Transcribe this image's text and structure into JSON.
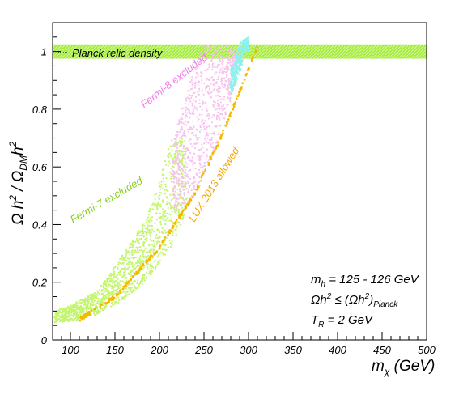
{
  "chart_data": {
    "type": "scatter",
    "title": "",
    "xlabel": "m_χ (GeV)",
    "ylabel": "Ω h² / Ω_DM h²",
    "xlim": [
      80,
      500
    ],
    "ylim": [
      0,
      1.1
    ],
    "x_ticks": [
      100,
      150,
      200,
      250,
      300,
      350,
      400,
      450,
      500
    ],
    "y_ticks": [
      0,
      0.2,
      0.4,
      0.6,
      0.8,
      1
    ],
    "x_tick_labels": [
      "100",
      "150",
      "200",
      "250",
      "300",
      "350",
      "400",
      "450",
      "500"
    ],
    "y_tick_labels": [
      "0",
      "0.2",
      "0.4",
      "0.6",
      "0.8",
      "1"
    ],
    "grid": false,
    "band": {
      "name": "Planck relic density",
      "y_range": [
        0.975,
        1.025
      ],
      "x_range": [
        80,
        500
      ],
      "color": "#a6ec3e"
    },
    "series": [
      {
        "name": "Fermi-7 excluded",
        "color": "#c4f56f",
        "lower_edge": [
          [
            82,
            0.06
          ],
          [
            100,
            0.065
          ],
          [
            120,
            0.075
          ],
          [
            150,
            0.12
          ],
          [
            180,
            0.19
          ],
          [
            200,
            0.26
          ],
          [
            215,
            0.33
          ],
          [
            230,
            0.45
          ]
        ],
        "upper_edge": [
          [
            82,
            0.1
          ],
          [
            100,
            0.12
          ],
          [
            130,
            0.17
          ],
          [
            160,
            0.3
          ],
          [
            185,
            0.42
          ],
          [
            200,
            0.55
          ],
          [
            210,
            0.67
          ],
          [
            215,
            0.7
          ]
        ]
      },
      {
        "name": "Fermi-8 excluded",
        "color": "#f6c2ee",
        "lower_edge": [
          [
            230,
            0.45
          ],
          [
            250,
            0.56
          ],
          [
            270,
            0.73
          ],
          [
            280,
            0.83
          ],
          [
            290,
            0.95
          ]
        ],
        "upper_edge": [
          [
            215,
            0.7
          ],
          [
            230,
            0.85
          ],
          [
            240,
            0.95
          ],
          [
            250,
            1.02
          ],
          [
            275,
            1.02
          ],
          [
            285,
            1.0
          ]
        ]
      },
      {
        "name": "LUX 2013 allowed",
        "color": "#f5b800",
        "curve": [
          [
            110,
            0.07
          ],
          [
            150,
            0.15
          ],
          [
            200,
            0.32
          ],
          [
            240,
            0.51
          ],
          [
            270,
            0.71
          ],
          [
            290,
            0.86
          ],
          [
            305,
            0.98
          ],
          [
            312,
            1.03
          ]
        ]
      },
      {
        "name": "Cyan",
        "color": "#8af2ec",
        "lower_edge": [
          [
            280,
            0.85
          ],
          [
            290,
            0.92
          ],
          [
            296,
            1.0
          ]
        ],
        "upper_edge": [
          [
            283,
            0.95
          ],
          [
            290,
            1.03
          ],
          [
            300,
            1.05
          ]
        ]
      }
    ],
    "annotations": [
      {
        "text": "Fermi-8 excluded",
        "color": "#ef7ee8"
      },
      {
        "text": "Fermi-7 excluded",
        "color": "#86cf20"
      },
      {
        "text": "LUX 2013 allowed",
        "color": "#f0a800"
      }
    ],
    "legend_text": [
      "m_h = 125 - 126 GeV",
      "Ωh² ≤ (Ωh²)_Planck",
      "T_R = 2 GeV"
    ]
  }
}
